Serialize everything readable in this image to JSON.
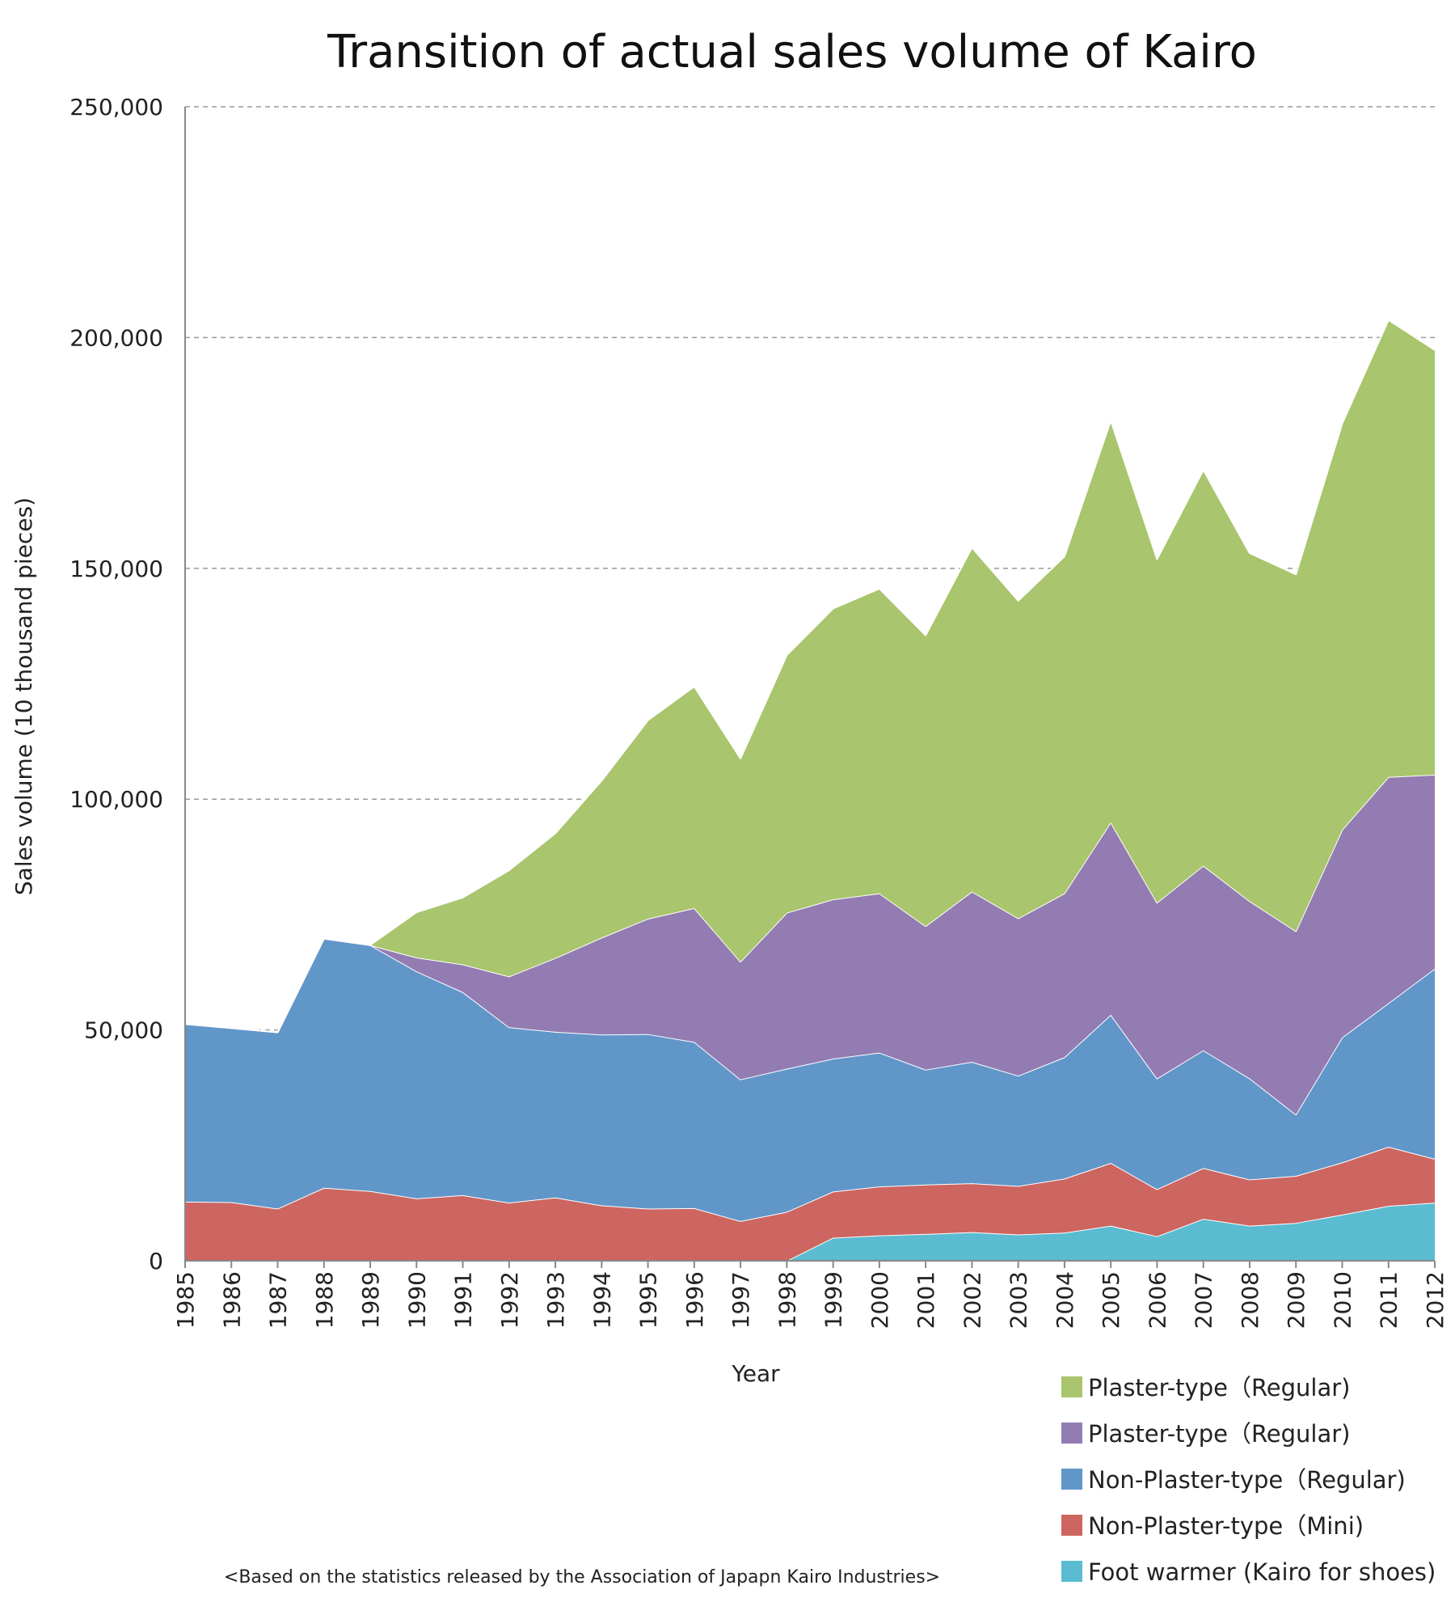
{
  "chart_data": {
    "type": "area",
    "stacked": true,
    "title": "Transition of actual sales volume of Kairo",
    "xlabel": "Year",
    "ylabel": "Sales volume (10 thousand pieces)",
    "ylim": [
      0,
      250000
    ],
    "yticks": [
      0,
      50000,
      100000,
      150000,
      200000,
      250000
    ],
    "ytick_labels": [
      "0",
      "50,000",
      "100,000",
      "150,000",
      "200,000",
      "250,000"
    ],
    "grid": "horizontal dashed",
    "legend_position": "bottom-right",
    "note": "<Based on the statistics released by the Association of Japapn Kairo Industries>",
    "x": [
      1985,
      1986,
      1987,
      1988,
      1989,
      1990,
      1991,
      1992,
      1993,
      1994,
      1995,
      1996,
      1997,
      1998,
      1999,
      2000,
      2001,
      2002,
      2003,
      2004,
      2005,
      2006,
      2007,
      2008,
      2009,
      2010,
      2011,
      2012
    ],
    "series": [
      {
        "name": "Foot warmer (Kairo for shoes)",
        "color": "#5BBBD0",
        "values": [
          0,
          0,
          0,
          0,
          0,
          0,
          0,
          0,
          0,
          0,
          0,
          0,
          0,
          0,
          5000,
          5500,
          5800,
          6200,
          5700,
          6100,
          7600,
          5300,
          9100,
          7600,
          8200,
          10000,
          11900,
          12600
        ]
      },
      {
        "name": "Non-Plaster-type（Mini)",
        "color": "#CD6560",
        "values": [
          12800,
          12700,
          11300,
          15800,
          15100,
          13500,
          14200,
          12600,
          13700,
          12000,
          11300,
          11400,
          8600,
          10600,
          10000,
          10600,
          10700,
          10600,
          10500,
          11700,
          13600,
          10200,
          11000,
          10000,
          10200,
          11300,
          12800,
          9500
        ]
      },
      {
        "name": "Non-Plaster-type（Regular)",
        "color": "#6196C9",
        "values": [
          38500,
          37700,
          38200,
          54000,
          53300,
          49200,
          44000,
          38000,
          35900,
          37000,
          37800,
          36000,
          30700,
          31000,
          28800,
          29000,
          24900,
          26300,
          23900,
          26300,
          32100,
          24000,
          25500,
          21900,
          13300,
          27100,
          31100,
          41200
        ]
      },
      {
        "name": "Plaster-type（Regular)",
        "color": "#937CB2",
        "values": [
          0,
          0,
          0,
          0,
          0,
          3000,
          6000,
          11000,
          16000,
          21000,
          25000,
          29000,
          25500,
          33800,
          34500,
          34500,
          31100,
          36900,
          34100,
          35500,
          41700,
          38100,
          40000,
          38400,
          39700,
          45000,
          49000,
          42000
        ]
      },
      {
        "name": "Plaster-type（Regular)",
        "color": "#A9C56D",
        "values": [
          0,
          0,
          0,
          0,
          0,
          9800,
          14500,
          23000,
          27000,
          34000,
          43000,
          48000,
          44000,
          55800,
          63000,
          66000,
          63000,
          74500,
          68800,
          73000,
          87000,
          74400,
          85700,
          75400,
          77300,
          88000,
          99000,
          92000
        ]
      }
    ]
  }
}
